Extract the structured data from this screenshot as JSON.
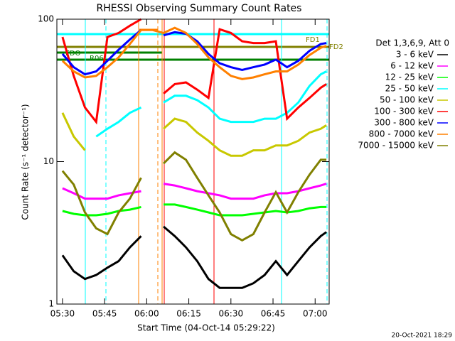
{
  "chart_data": {
    "type": "line",
    "title": "RHESSI Observing Summary Count Rates",
    "x_label": "Start Time (04-Oct-14 05:29:22)",
    "y_label": "Count Rate (s⁻¹ detector⁻¹)",
    "legend_title": "Det 1,3,6,9, Att 0",
    "footer": "20-Oct-2021 18:29",
    "annotations": [
      "FDO",
      "R06",
      "FD1",
      "FD2"
    ],
    "log_y": true,
    "xlim": [
      "05:28",
      "07:05"
    ],
    "xticks": [
      "05:30",
      "05:45",
      "06:00",
      "06:15",
      "06:30",
      "06:45",
      "07:00"
    ],
    "ylim": [
      1,
      100
    ],
    "yticks": [
      1,
      10,
      100
    ],
    "x": [
      "05:30",
      "05:34",
      "05:38",
      "05:42",
      "05:46",
      "05:50",
      "05:54",
      "05:58",
      "06:02",
      "06:06",
      "06:10",
      "06:14",
      "06:18",
      "06:22",
      "06:26",
      "06:30",
      "06:34",
      "06:38",
      "06:42",
      "06:46",
      "06:50",
      "06:54",
      "06:58",
      "07:02",
      "07:04"
    ],
    "series": [
      {
        "name": "3 - 6 keV",
        "color": "#000000",
        "values": [
          2.2,
          1.7,
          1.5,
          1.6,
          1.8,
          2.0,
          2.5,
          3.0,
          null,
          3.5,
          3.0,
          2.5,
          2.0,
          1.5,
          1.3,
          1.3,
          1.3,
          1.4,
          1.6,
          2.0,
          1.6,
          2.0,
          2.5,
          3.0,
          3.2
        ]
      },
      {
        "name": "6 - 12 keV",
        "color": "#ff00ff",
        "values": [
          6.5,
          6,
          5.5,
          5.5,
          5.5,
          5.8,
          6,
          6.2,
          null,
          7,
          6.8,
          6.5,
          6.2,
          6,
          5.8,
          5.5,
          5.5,
          5.5,
          5.8,
          6,
          6,
          6.2,
          6.5,
          6.8,
          7
        ]
      },
      {
        "name": "12 - 25 keV",
        "color": "#00ff00",
        "values": [
          4.5,
          4.3,
          4.2,
          4.2,
          4.3,
          4.5,
          4.6,
          4.8,
          null,
          5,
          5,
          4.8,
          4.6,
          4.4,
          4.2,
          4.2,
          4.2,
          4.3,
          4.4,
          4.5,
          4.4,
          4.5,
          4.7,
          4.8,
          4.8
        ]
      },
      {
        "name": "25 - 50 keV",
        "color": "#00ffff",
        "values": [
          null,
          null,
          null,
          15,
          17,
          19,
          22,
          24,
          null,
          26,
          29,
          29,
          27,
          24,
          20,
          19,
          19,
          19,
          20,
          20,
          22,
          26,
          34,
          41,
          43
        ]
      },
      {
        "name": "50 - 100 keV",
        "color": "#c8c800",
        "values": [
          22,
          15,
          12,
          null,
          null,
          null,
          null,
          null,
          null,
          17,
          20,
          19,
          16,
          14,
          12,
          11,
          11,
          12,
          12,
          13,
          13,
          14,
          16,
          17,
          18
        ]
      },
      {
        "name": "100 - 300 keV",
        "color": "#ff0000",
        "values": [
          75,
          40,
          24,
          19,
          75,
          80,
          90,
          100,
          null,
          30,
          35,
          36,
          32,
          28,
          85,
          80,
          70,
          68,
          68,
          70,
          20,
          24,
          28,
          33,
          35
        ]
      },
      {
        "name": "300 - 800 keV",
        "color": "#0000ff",
        "values": [
          57,
          46,
          41,
          43,
          51,
          61,
          72,
          84,
          null,
          77,
          81,
          79,
          70,
          57,
          49,
          46,
          44,
          46,
          48,
          52,
          46,
          51,
          60,
          67,
          68
        ]
      },
      {
        "name": "800 - 7000 keV",
        "color": "#ff8000",
        "values": [
          51,
          43,
          39,
          40,
          46,
          54,
          67,
          84,
          84,
          80,
          87,
          80,
          67,
          54,
          46,
          40,
          38,
          39,
          41,
          43,
          43,
          48,
          56,
          63,
          65
        ]
      },
      {
        "name": "7000 - 15000 keV",
        "color": "#808000",
        "values": [
          8.6,
          6.9,
          4.4,
          3.4,
          3.1,
          4.4,
          5.5,
          7.7,
          null,
          9.7,
          11.6,
          10.3,
          7.7,
          5.8,
          4.4,
          3.1,
          2.8,
          3.1,
          4.4,
          6.1,
          4.4,
          6.1,
          8.1,
          10.3,
          10.3
        ]
      }
    ]
  }
}
